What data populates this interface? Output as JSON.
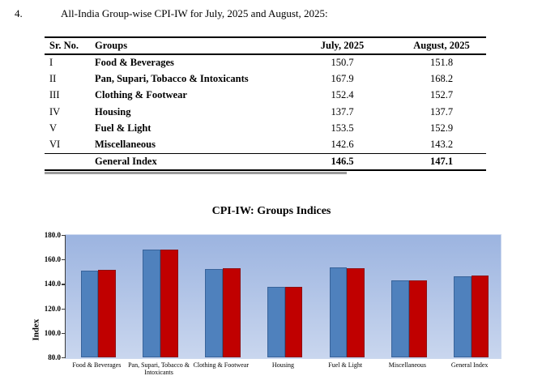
{
  "page": {
    "item_number": "4.",
    "heading": "All-India Group-wise CPI-IW for July, 2025 and August, 2025:"
  },
  "table": {
    "columns": [
      "Sr. No.",
      "Groups",
      "July, 2025",
      "August, 2025"
    ],
    "rows": [
      {
        "sr": "I",
        "group": "Food & Beverages",
        "july": "150.7",
        "august": "151.8"
      },
      {
        "sr": "II",
        "group": "Pan, Supari, Tobacco & Intoxicants",
        "july": "167.9",
        "august": "168.2"
      },
      {
        "sr": "III",
        "group": "Clothing & Footwear",
        "july": "152.4",
        "august": "152.7"
      },
      {
        "sr": "IV",
        "group": "Housing",
        "july": "137.7",
        "august": "137.7"
      },
      {
        "sr": "V",
        "group": "Fuel & Light",
        "july": "153.5",
        "august": "152.9"
      },
      {
        "sr": "VI",
        "group": "Miscellaneous",
        "july": "142.6",
        "august": "143.2"
      }
    ],
    "footer": {
      "sr": "",
      "group": "General Index",
      "july": "146.5",
      "august": "147.1"
    }
  },
  "chart_data": {
    "type": "bar",
    "title": "CPI-IW: Groups Indices",
    "xlabel": "",
    "ylabel": "Index",
    "ylim": [
      80,
      180
    ],
    "y_ticks": [
      180,
      160,
      140,
      120,
      100,
      80
    ],
    "tick_format": "one-decimal",
    "grid": false,
    "legend_position": "below (cut off in view)",
    "plot_background": {
      "top": "#9cb4e0",
      "bottom": "#c9d6ee"
    },
    "categories": [
      "Food & Beverages",
      "Pan, Supari, Tobacco & Intoxicants",
      "Clothing & Footwear",
      "Housing",
      "Fuel & Light",
      "Miscellaneous",
      "General Index"
    ],
    "series": [
      {
        "name": "July, 2025",
        "color": "#4f81bd",
        "values": [
          150.7,
          167.9,
          152.4,
          137.7,
          153.5,
          142.6,
          146.5
        ]
      },
      {
        "name": "August, 2025",
        "color": "#c00000",
        "values": [
          151.8,
          168.2,
          152.7,
          137.7,
          152.9,
          143.2,
          147.1
        ]
      }
    ]
  }
}
